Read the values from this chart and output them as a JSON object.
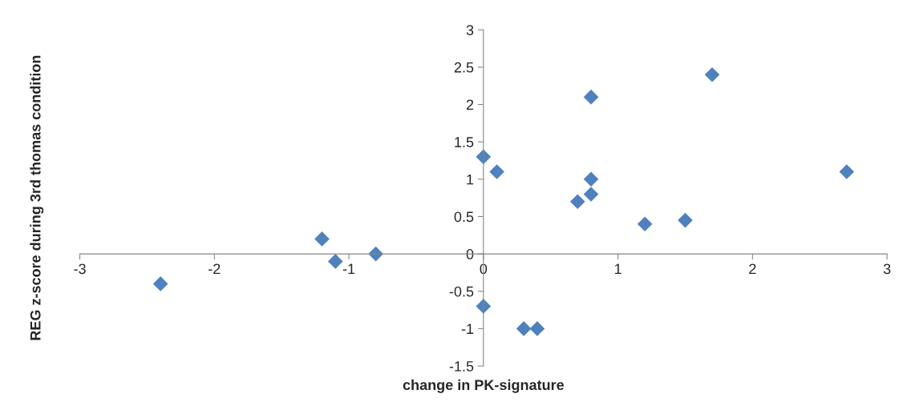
{
  "chart_data": {
    "type": "scatter",
    "xlabel": "change in PK-signature",
    "ylabel": "REG z-score during 3rd thomas condition",
    "x": [
      -2.4,
      -1.2,
      -1.1,
      -0.8,
      0,
      0.1,
      0,
      0.3,
      0.4,
      0.7,
      0.8,
      0.8,
      0.8,
      1.2,
      1.5,
      1.7,
      2.7
    ],
    "series": [
      {
        "color": "#4f81bd",
        "values": [
          -0.4,
          0.2,
          -0.1,
          0,
          1.3,
          1.1,
          -0.7,
          -1,
          -1,
          0.7,
          2.1,
          1,
          0.8,
          0.4,
          0.45,
          2.4,
          1.1
        ]
      }
    ],
    "xlim": [
      -3,
      3
    ],
    "ylim": [
      -1.5,
      3
    ],
    "xticks": [
      -3,
      -2,
      -1,
      0,
      1,
      2,
      3
    ],
    "yticks": [
      -1.5,
      -1,
      -0.5,
      0,
      0.5,
      1,
      1.5,
      2,
      2.5,
      3
    ],
    "marker": "diamond",
    "grid": false,
    "legend": false
  }
}
